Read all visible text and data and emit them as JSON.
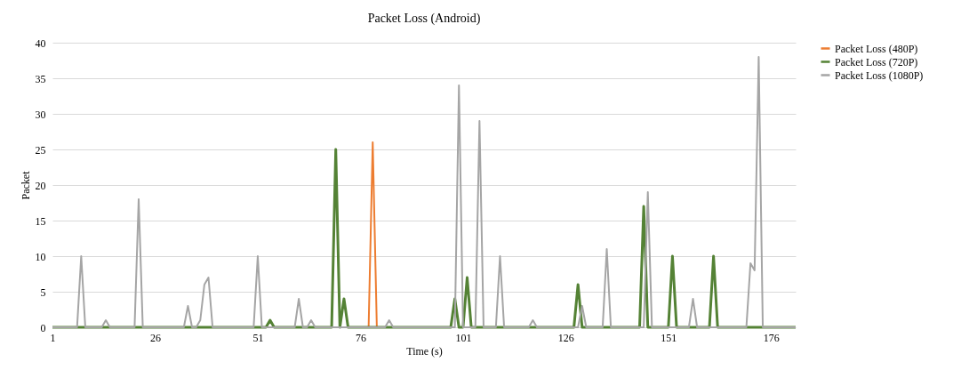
{
  "chart_data": {
    "type": "line",
    "title": "Packet Loss (Android)",
    "xlabel": "Time (s)",
    "ylabel": "Packet",
    "x": [
      1,
      2,
      3,
      4,
      5,
      6,
      7,
      8,
      9,
      10,
      11,
      12,
      13,
      14,
      15,
      16,
      17,
      18,
      19,
      20,
      21,
      22,
      23,
      24,
      25,
      26,
      27,
      28,
      29,
      30,
      31,
      32,
      33,
      34,
      35,
      36,
      37,
      38,
      39,
      40,
      41,
      42,
      43,
      44,
      45,
      46,
      47,
      48,
      49,
      50,
      51,
      52,
      53,
      54,
      55,
      56,
      57,
      58,
      59,
      60,
      61,
      62,
      63,
      64,
      65,
      66,
      67,
      68,
      69,
      70,
      71,
      72,
      73,
      74,
      75,
      76,
      77,
      78,
      79,
      80,
      81,
      82,
      83,
      84,
      85,
      86,
      87,
      88,
      89,
      90,
      91,
      92,
      93,
      94,
      95,
      96,
      97,
      98,
      99,
      100,
      101,
      102,
      103,
      104,
      105,
      106,
      107,
      108,
      109,
      110,
      111,
      112,
      113,
      114,
      115,
      116,
      117,
      118,
      119,
      120,
      121,
      122,
      123,
      124,
      125,
      126,
      127,
      128,
      129,
      130,
      131,
      132,
      133,
      134,
      135,
      136,
      137,
      138,
      139,
      140,
      141,
      142,
      143,
      144,
      145,
      146,
      147,
      148,
      149,
      150,
      151,
      152,
      153,
      154,
      155,
      156,
      157,
      158,
      159,
      160,
      161,
      162,
      163,
      164,
      165,
      166,
      167,
      168,
      169,
      170,
      171,
      172,
      173,
      174,
      175,
      176,
      177,
      178,
      179,
      180,
      181,
      182
    ],
    "series": [
      {
        "name": "Packet Loss (480P)",
        "color": "#ed7d31",
        "values": [
          null,
          null,
          null,
          null,
          null,
          null,
          null,
          null,
          null,
          null,
          null,
          null,
          null,
          null,
          null,
          null,
          null,
          null,
          null,
          null,
          null,
          null,
          null,
          null,
          null,
          null,
          null,
          null,
          null,
          null,
          null,
          null,
          null,
          null,
          null,
          null,
          null,
          null,
          null,
          null,
          null,
          null,
          null,
          null,
          null,
          null,
          null,
          null,
          null,
          null,
          null,
          null,
          null,
          null,
          null,
          null,
          null,
          null,
          null,
          null,
          null,
          null,
          null,
          null,
          null,
          null,
          null,
          null,
          null,
          null,
          null,
          null,
          null,
          null,
          null,
          null,
          null,
          0,
          26,
          0,
          null,
          null,
          null,
          null,
          null,
          null,
          null,
          null,
          null,
          null,
          null,
          null,
          null,
          null,
          null,
          null,
          null,
          null,
          null,
          null,
          null,
          null,
          null,
          null,
          null,
          null,
          null,
          null,
          null,
          null,
          null,
          null,
          null,
          null,
          null,
          null,
          null,
          null,
          null,
          null,
          null,
          null,
          null,
          null,
          null,
          null,
          null,
          null,
          null,
          null,
          null,
          null,
          null,
          null,
          null,
          null,
          null,
          null,
          null,
          null,
          null,
          null,
          null,
          null,
          null,
          null,
          null,
          null,
          null,
          null,
          null,
          null,
          null,
          null,
          null,
          null,
          null,
          null,
          null,
          null,
          null,
          null,
          null,
          null,
          null,
          null,
          null,
          null,
          null,
          null,
          null,
          null,
          null,
          null,
          null,
          null,
          null,
          null,
          null,
          null,
          null,
          null
        ]
      },
      {
        "name": "Packet Loss (720P)",
        "color": "#548235",
        "values": [
          0,
          0,
          0,
          0,
          0,
          0,
          0,
          0,
          0,
          0,
          0,
          0,
          0,
          0,
          0,
          0,
          0,
          0,
          0,
          0,
          0,
          0,
          0,
          0,
          0,
          0,
          0,
          0,
          0,
          0,
          0,
          0,
          0,
          0,
          0,
          0,
          0,
          0,
          0,
          0,
          0,
          0,
          0,
          0,
          0,
          0,
          0,
          0,
          0,
          0,
          0,
          0,
          0,
          1,
          0,
          0,
          0,
          0,
          0,
          0,
          0,
          0,
          0,
          0,
          0,
          0,
          0,
          0,
          0,
          25,
          0,
          4,
          0,
          0,
          0,
          0,
          0,
          0,
          0,
          0,
          0,
          0,
          0,
          0,
          0,
          0,
          0,
          0,
          0,
          0,
          0,
          0,
          0,
          0,
          0,
          0,
          0,
          0,
          4,
          0,
          0,
          7,
          0,
          0,
          0,
          0,
          0,
          0,
          0,
          0,
          0,
          0,
          0,
          0,
          0,
          0,
          0,
          0,
          0,
          0,
          0,
          0,
          0,
          0,
          0,
          0,
          0,
          0,
          6,
          0,
          0,
          0,
          0,
          0,
          0,
          0,
          0,
          0,
          0,
          0,
          0,
          0,
          0,
          0,
          17,
          0,
          0,
          0,
          0,
          0,
          0,
          10,
          0,
          0,
          0,
          0,
          0,
          0,
          0,
          0,
          0,
          10,
          0,
          0,
          0,
          0,
          0,
          0,
          0,
          0,
          0,
          0,
          0,
          0,
          0,
          0,
          0,
          0,
          0,
          0,
          0,
          0
        ]
      },
      {
        "name": "Packet Loss (1080P)",
        "color": "#a5a5a5",
        "values": [
          0,
          0,
          0,
          0,
          0,
          0,
          0,
          10,
          0,
          0,
          0,
          0,
          0,
          1,
          0,
          0,
          0,
          0,
          0,
          0,
          0,
          18,
          0,
          0,
          0,
          0,
          0,
          0,
          0,
          0,
          0,
          0,
          0,
          3,
          0,
          0,
          1,
          6,
          7,
          0,
          0,
          0,
          0,
          0,
          0,
          0,
          0,
          0,
          0,
          0,
          10,
          0,
          0,
          0,
          0,
          0,
          0,
          0,
          0,
          0,
          4,
          0,
          0,
          1,
          0,
          0,
          0,
          0,
          0,
          0,
          0,
          0,
          0,
          0,
          0,
          0,
          0,
          0,
          0,
          0,
          0,
          0,
          1,
          0,
          0,
          0,
          0,
          0,
          0,
          0,
          0,
          0,
          0,
          0,
          0,
          0,
          0,
          0,
          0,
          34,
          0,
          0,
          0,
          0,
          29,
          0,
          0,
          0,
          0,
          10,
          0,
          0,
          0,
          0,
          0,
          0,
          0,
          1,
          0,
          0,
          0,
          0,
          0,
          0,
          0,
          0,
          0,
          0,
          0,
          3,
          0,
          0,
          0,
          0,
          0,
          11,
          0,
          0,
          0,
          0,
          0,
          0,
          0,
          0,
          0,
          19,
          0,
          0,
          0,
          0,
          0,
          0,
          0,
          0,
          0,
          0,
          4,
          0,
          0,
          0,
          0,
          0,
          0,
          0,
          0,
          0,
          0,
          0,
          0,
          0,
          9,
          8,
          38,
          0,
          0,
          0,
          0,
          0,
          0,
          0,
          0,
          0
        ]
      }
    ],
    "xlim": [
      1,
      182
    ],
    "xticks": [
      1,
      26,
      51,
      76,
      101,
      126,
      151,
      176
    ],
    "ylim": [
      0,
      40
    ],
    "yticks": [
      0,
      5,
      10,
      15,
      20,
      25,
      30,
      35,
      40
    ],
    "grid": "y",
    "legend": "right"
  }
}
